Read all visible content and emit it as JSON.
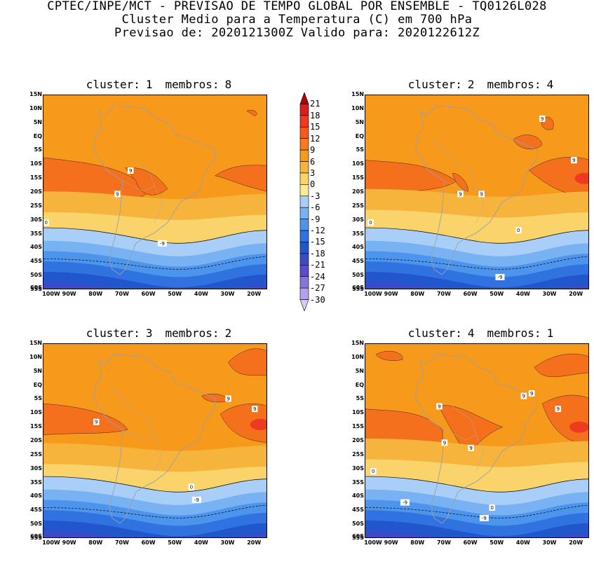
{
  "header": {
    "line1": "CPTEC/INPE/MCT - PREVISAO DE TEMPO GLOBAL POR ENSEMBLE - TQ0126L028",
    "line2": "Cluster Medio para a Temperatura (C) em 700 hPa",
    "line3": "Previsao de: 2020121300Z   Valido para: 2020122612Z"
  },
  "axes": {
    "lat_labels": [
      "15N",
      "10N",
      "5N",
      "EQ",
      "5S",
      "10S",
      "15S",
      "20S",
      "25S",
      "30S",
      "35S",
      "40S",
      "45S",
      "50S",
      "55S",
      "60S"
    ],
    "lon_labels": [
      "100W",
      "90W",
      "80W",
      "70W",
      "60W",
      "50W",
      "40W",
      "30W",
      "20W"
    ]
  },
  "panels": [
    {
      "cluster_label": "cluster:",
      "cluster_num": "1",
      "members_label": "membros:",
      "members_num": "8",
      "contour_labels": [
        "9",
        "9",
        "0",
        "-9"
      ]
    },
    {
      "cluster_label": "cluster:",
      "cluster_num": "2",
      "members_label": "membros:",
      "members_num": "4",
      "contour_labels": [
        "9",
        "9",
        "9",
        "9",
        "0",
        "0",
        "-9"
      ]
    },
    {
      "cluster_label": "cluster:",
      "cluster_num": "3",
      "members_label": "membros:",
      "members_num": "2",
      "contour_labels": [
        "9",
        "9",
        "9",
        "0",
        "-9"
      ]
    },
    {
      "cluster_label": "cluster:",
      "cluster_num": "4",
      "members_label": "membros:",
      "members_num": "1",
      "contour_labels": [
        "9",
        "9",
        "9",
        "9",
        "9",
        "9",
        "0",
        "0",
        "-9",
        "-9"
      ]
    }
  ],
  "colorbar": {
    "levels": [
      "21",
      "18",
      "15",
      "12",
      "9",
      "6",
      "3",
      "0",
      "-3",
      "-6",
      "-9",
      "-12",
      "-15",
      "-18",
      "-21",
      "-24",
      "-27",
      "-30"
    ],
    "colors": [
      "#b30000",
      "#d81e1e",
      "#ee3a1e",
      "#f45a1c",
      "#f77a1e",
      "#f79a1c",
      "#f7b43c",
      "#fad36a",
      "#fbea96",
      "#a9cff8",
      "#78b2f2",
      "#4d94ec",
      "#2f72e0",
      "#2156cc",
      "#3a4ac8",
      "#5a4ccc",
      "#8a74dc",
      "#b4a2ec",
      "#d6ccf6"
    ]
  },
  "chart_data": {
    "type": "heatmap",
    "title": "Cluster Medio para a Temperatura (C) em 700 hPa",
    "units": "C",
    "lat_range": [
      "15N",
      "60S"
    ],
    "lon_range": [
      "100W",
      "15W"
    ],
    "contour_lines": [
      9,
      0,
      -9
    ],
    "zonal_profile_by_panel": [
      {
        "cluster": 1,
        "lat": [
          15,
          0,
          -10,
          -20,
          -30,
          -35,
          -40,
          -45,
          -50,
          -55,
          -60
        ],
        "temp": [
          8,
          8,
          7,
          10,
          5,
          2,
          -3,
          -7,
          -10,
          -13,
          -16
        ]
      },
      {
        "cluster": 2,
        "lat": [
          15,
          0,
          -10,
          -20,
          -30,
          -35,
          -40,
          -45,
          -50,
          -55,
          -60
        ],
        "temp": [
          7,
          7,
          8,
          10,
          5,
          1,
          -2,
          -6,
          -9,
          -12,
          -15
        ]
      },
      {
        "cluster": 3,
        "lat": [
          15,
          0,
          -10,
          -20,
          -30,
          -35,
          -40,
          -45,
          -50,
          -55,
          -60
        ],
        "temp": [
          8,
          8,
          9,
          8,
          5,
          3,
          -1,
          -6,
          -10,
          -13,
          -16
        ]
      },
      {
        "cluster": 4,
        "lat": [
          15,
          0,
          -10,
          -20,
          -30,
          -35,
          -40,
          -45,
          -50,
          -55,
          -60
        ],
        "temp": [
          8,
          8,
          10,
          10,
          5,
          1,
          -3,
          -7,
          -10,
          -14,
          -17
        ]
      }
    ]
  }
}
